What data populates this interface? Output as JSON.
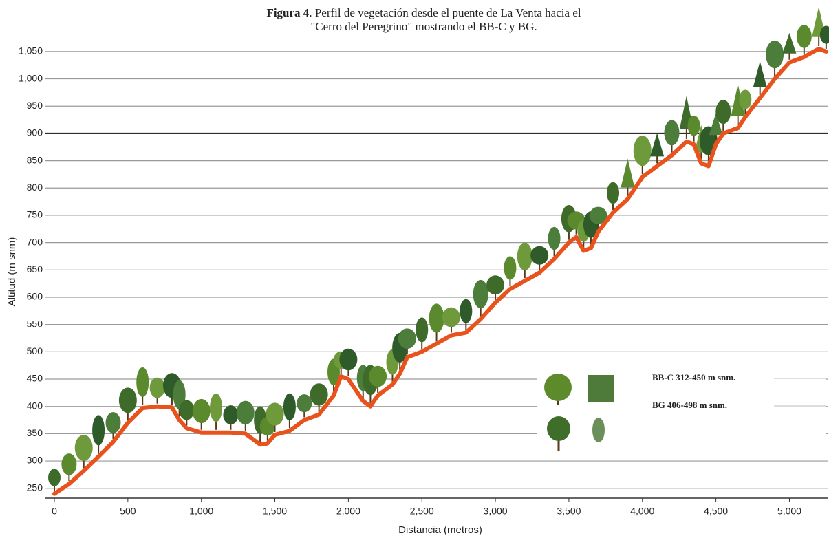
{
  "chart_data": {
    "type": "line",
    "title_prefix": "Figura 4",
    "title_line1": ". Perfil de vegetación desde el puente de La Venta hacia el",
    "title_line2": "\"Cerro del Peregrino\" mostrando el BB-C y BG.",
    "x_label": "Distancia (metros)",
    "y_label": "Altitud (m snm)",
    "xlim": [
      0,
      5260
    ],
    "ylim": [
      232,
      1065
    ],
    "xticks": [
      0,
      500,
      {
        "value": 1000,
        "label": "1,000"
      },
      {
        "value": 1500,
        "label": "1,500"
      },
      {
        "value": 2000,
        "label": "2,000"
      },
      {
        "value": 2500,
        "label": "2,500"
      },
      {
        "value": 3000,
        "label": "3,000"
      },
      {
        "value": 3500,
        "label": "3,500"
      },
      {
        "value": 4000,
        "label": "4,000"
      },
      {
        "value": 4500,
        "label": "4,500"
      },
      {
        "value": 5000,
        "label": "5,000"
      }
    ],
    "yticks": [
      250,
      300,
      350,
      400,
      450,
      500,
      550,
      600,
      650,
      700,
      750,
      800,
      850,
      900,
      950,
      {
        "value": 1000,
        "label": "1,000"
      },
      {
        "value": 1050,
        "label": "1,050"
      }
    ],
    "grid": true,
    "reference_line": 900,
    "x": [
      0,
      100,
      200,
      300,
      400,
      500,
      600,
      700,
      800,
      850,
      900,
      1000,
      1100,
      1200,
      1300,
      1400,
      1450,
      1500,
      1600,
      1700,
      1800,
      1900,
      1950,
      2000,
      2100,
      2150,
      2200,
      2300,
      2350,
      2400,
      2500,
      2600,
      2700,
      2800,
      2900,
      3000,
      3100,
      3200,
      3300,
      3400,
      3500,
      3550,
      3600,
      3650,
      3700,
      3800,
      3900,
      4000,
      4100,
      4200,
      4300,
      4350,
      4400,
      4450,
      4500,
      4550,
      4650,
      4700,
      4800,
      4900,
      5000,
      5100,
      5200,
      5250
    ],
    "series": [
      {
        "color": "#e8531d",
        "values": [
          240,
          258,
          282,
          308,
          335,
          370,
          397,
          400,
          398,
          375,
          360,
          352,
          352,
          352,
          350,
          330,
          332,
          348,
          355,
          375,
          385,
          420,
          455,
          450,
          410,
          400,
          420,
          440,
          460,
          490,
          500,
          515,
          530,
          535,
          560,
          590,
          615,
          630,
          645,
          670,
          700,
          710,
          685,
          690,
          720,
          755,
          780,
          820,
          840,
          860,
          885,
          880,
          845,
          840,
          880,
          900,
          910,
          930,
          965,
          1000,
          1030,
          1040,
          1055,
          1050
        ]
      }
    ],
    "legend_items": [
      "BB-C  312-450 m snm.",
      "BG 406-498 m snm."
    ]
  }
}
